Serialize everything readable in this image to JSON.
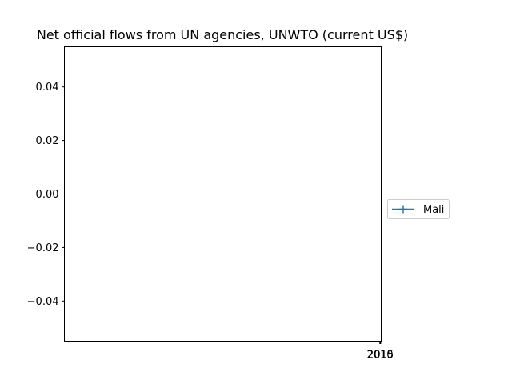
{
  "chart_data": {
    "type": "line",
    "title": "Net official flows from UN agencies, UNWTO (current US$)",
    "xlabel": "",
    "ylabel": "",
    "x_ticks": [
      "2010",
      "2015"
    ],
    "y_ticks": [
      "0.04",
      "0.02",
      "0.00",
      "−0.02",
      "−0.04"
    ],
    "ylim": [
      -0.055,
      0.055
    ],
    "grid": false,
    "legend_placement": "right",
    "series": [
      {
        "name": "Mali",
        "color": "#1f77b4",
        "marker": "plus",
        "x": [],
        "values": []
      }
    ]
  }
}
